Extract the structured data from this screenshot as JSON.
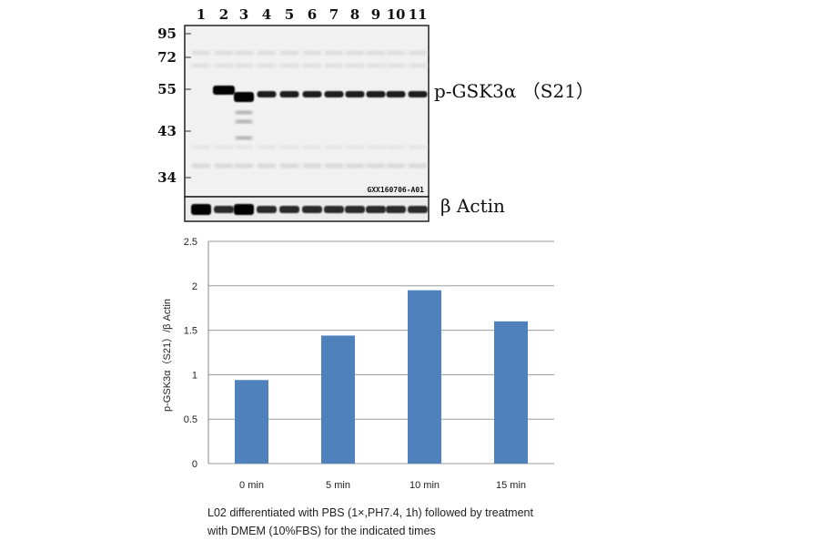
{
  "blot": {
    "lanes": [
      "1",
      "2",
      "3",
      "4",
      "5",
      "6",
      "7",
      "8",
      "9",
      "10",
      "11"
    ],
    "mw_markers": [
      "95",
      "72",
      "55",
      "43",
      "34"
    ],
    "target_label": "p-GSK3α （S21）",
    "loading_label": "β Actin",
    "catalog": "GXX160706-A01"
  },
  "chart_data": {
    "type": "bar",
    "categories": [
      "0 min",
      "5 min",
      "10 min",
      "15 min"
    ],
    "values": [
      0.94,
      1.44,
      1.95,
      1.6
    ],
    "ylabel": "p-GSK3α（S21）/β Actin",
    "ylim": [
      0,
      2.5
    ],
    "yticks": [
      "0",
      "0.5",
      "1",
      "1.5",
      "2",
      "2.5"
    ],
    "grid": true,
    "bar_color": "#4f81bd"
  },
  "caption": {
    "line1": "L02 differentiated with PBS (1×,PH7.4, 1h) followed by treatment",
    "line2": "with DMEM (10%FBS) for the indicated times"
  }
}
